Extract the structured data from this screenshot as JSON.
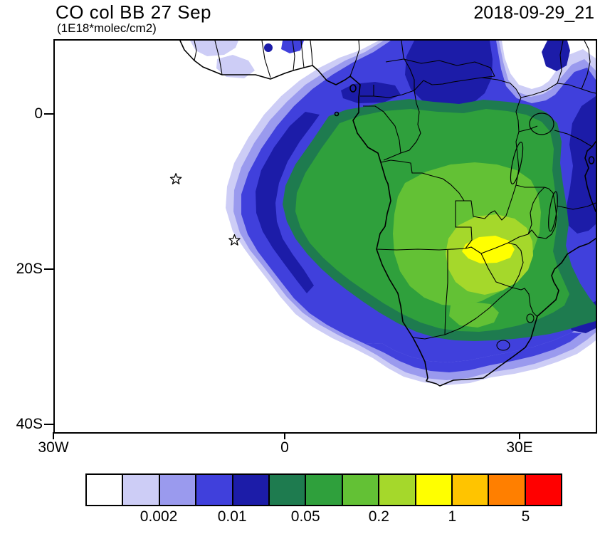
{
  "header": {
    "title": "CO col BB 27 Sep",
    "units_label": "(1E18*molec/cm2)",
    "datetime": "2018-09-29_21"
  },
  "axes": {
    "y_ticks": [
      {
        "label": "0"
      },
      {
        "label": "20S"
      },
      {
        "label": "40S"
      }
    ],
    "x_ticks": [
      {
        "label": "30W"
      },
      {
        "label": "0"
      },
      {
        "label": "30E"
      }
    ]
  },
  "colorbar": {
    "colors": [
      "#FFFFFF",
      "#CDCDF6",
      "#9A9AEE",
      "#4040DC",
      "#1C1CA8",
      "#1E7B4F",
      "#2FA03C",
      "#63C135",
      "#A5D82B",
      "#FFFF00",
      "#FFC400",
      "#FF7F00",
      "#FF0000"
    ],
    "tick_labels": [
      "0.002",
      "0.01",
      "0.05",
      "0.2",
      "1",
      "5"
    ],
    "boundary_indices": [
      2,
      4,
      6,
      8,
      10,
      12
    ]
  },
  "chart_data": {
    "type": "heatmap",
    "title": "CO col BB 27 Sep",
    "subtitle": "(1E18*molec/cm2)",
    "timestamp": "2018-09-29_21",
    "variable": "CO column from biomass burning",
    "units": "1E18 molec/cm2",
    "projection": "equirectangular",
    "map_extent": {
      "lon_min": -30,
      "lon_max": 40,
      "lat_min": -41,
      "lat_max": 10
    },
    "contour_levels": [
      0.001,
      0.002,
      0.005,
      0.01,
      0.02,
      0.05,
      0.1,
      0.2,
      0.5,
      1,
      2,
      5
    ],
    "labeled_levels": [
      0.002,
      0.01,
      0.05,
      0.2,
      1,
      5
    ],
    "palette": [
      "#FFFFFF",
      "#CDCDF6",
      "#9A9AEE",
      "#4040DC",
      "#1C1CA8",
      "#1E7B4F",
      "#2FA03C",
      "#63C135",
      "#A5D82B",
      "#FFFF00",
      "#FFC400",
      "#FF7F00",
      "#FF0000"
    ],
    "max_region": {
      "lon": 22,
      "lat": -17,
      "value_band": "0.5-1"
    },
    "plume_extent_summary": "Plume covers central/southern Africa and extends west over the South Atlantic; peak (yellow) over Zambia/Zimbabwe region",
    "markers": [
      {
        "type": "star",
        "lon": -14.3,
        "lat": -8.2
      },
      {
        "type": "star",
        "lon": -6.7,
        "lat": -16.1
      }
    ],
    "axis_ticks": {
      "x": [
        "30W",
        "0",
        "30E"
      ],
      "y": [
        "0",
        "20S",
        "40S"
      ]
    }
  }
}
